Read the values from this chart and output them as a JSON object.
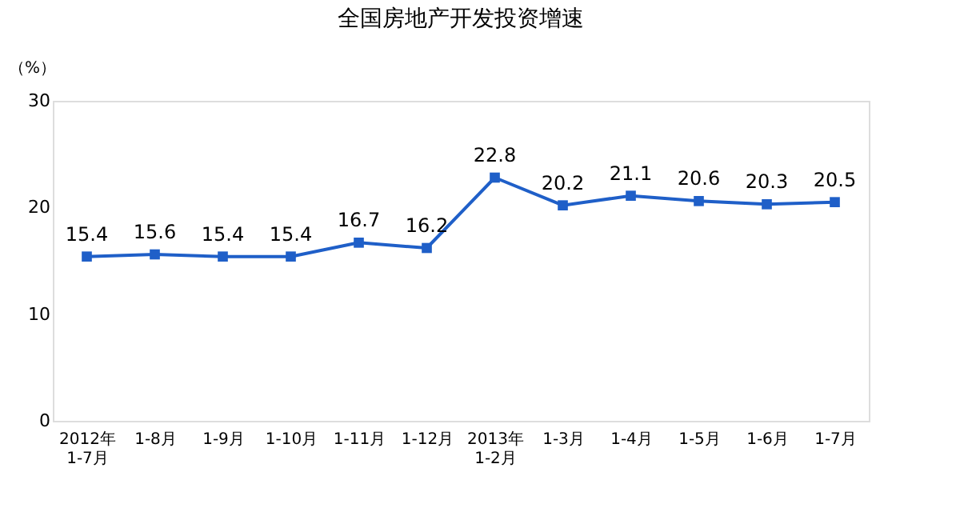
{
  "chart_data": {
    "type": "line",
    "title": "全国房地产开发投资增速",
    "ylabel": "（%）",
    "categories": [
      "2012年\n1-7月",
      "1-8月",
      "1-9月",
      "1-10月",
      "1-11月",
      "1-12月",
      "2013年\n1-2月",
      "1-3月",
      "1-4月",
      "1-5月",
      "1-6月",
      "1-7月"
    ],
    "series": [
      {
        "color": "#1f5fc8",
        "values": [
          15.4,
          15.6,
          15.4,
          15.4,
          16.7,
          16.2,
          22.8,
          20.2,
          21.1,
          20.6,
          20.3,
          20.5
        ]
      }
    ],
    "ylim": [
      0,
      30
    ],
    "yticks": [
      0,
      10,
      20,
      30
    ],
    "grid": false,
    "marker": "square",
    "line_style": "solid",
    "data_labels": true
  }
}
